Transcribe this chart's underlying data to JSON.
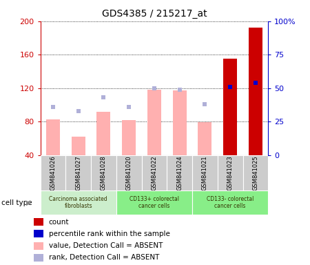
{
  "title": "GDS4385 / 215217_at",
  "samples": [
    "GSM841026",
    "GSM841027",
    "GSM841028",
    "GSM841020",
    "GSM841022",
    "GSM841024",
    "GSM841021",
    "GSM841023",
    "GSM841025"
  ],
  "value_bars": [
    83,
    62,
    92,
    82,
    118,
    117,
    79,
    155,
    192
  ],
  "rank_dots_pct": [
    36,
    33,
    43,
    36,
    50,
    49,
    38,
    51,
    54
  ],
  "is_absent": [
    true,
    true,
    true,
    true,
    true,
    true,
    true,
    false,
    false
  ],
  "ylim_left": [
    40,
    200
  ],
  "ylim_right": [
    0,
    100
  ],
  "yticks_left": [
    40,
    80,
    120,
    160,
    200
  ],
  "yticks_right": [
    0,
    25,
    50,
    75,
    100
  ],
  "ytick_labels_right": [
    "0",
    "25",
    "50",
    "75",
    "100%"
  ],
  "bar_color_absent": "#ffb0b0",
  "bar_color_present": "#cc0000",
  "dot_color_absent": "#b0b0d8",
  "dot_color_present": "#0000cc",
  "bg_color_xtick": "#cccccc",
  "left_axis_color": "#cc0000",
  "right_axis_color": "#0000cc",
  "cell_groups": [
    {
      "label": "Carcinoma associated\nfibroblasts",
      "start": 0,
      "end": 3,
      "color": "#cceecc"
    },
    {
      "label": "CD133+ colorectal\ncancer cells",
      "start": 3,
      "end": 6,
      "color": "#88ee88"
    },
    {
      "label": "CD133- colorectal\ncancer cells",
      "start": 6,
      "end": 9,
      "color": "#88ee88"
    }
  ],
  "legend_items": [
    {
      "label": "count",
      "color": "#cc0000"
    },
    {
      "label": "percentile rank within the sample",
      "color": "#0000cc"
    },
    {
      "label": "value, Detection Call = ABSENT",
      "color": "#ffb0b0"
    },
    {
      "label": "rank, Detection Call = ABSENT",
      "color": "#b0b0d8"
    }
  ]
}
